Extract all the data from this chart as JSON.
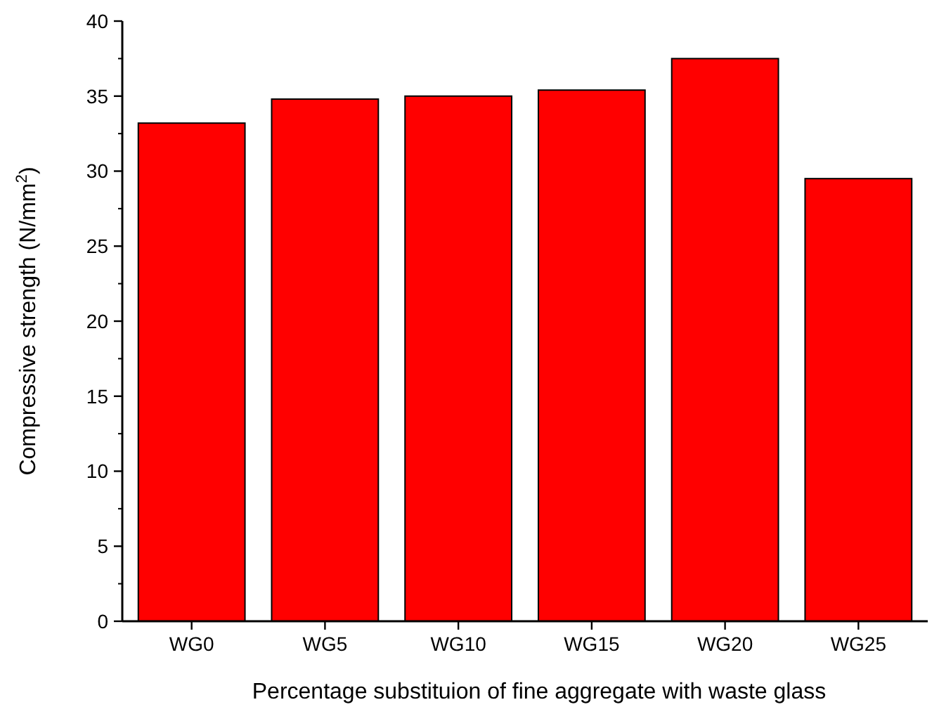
{
  "chart_data": {
    "type": "bar",
    "xlabel": "Percentage substituion of fine aggregate with waste glass",
    "ylabel": "Compressive strength (N/mm$^{2}$)",
    "categories": [
      "WG0",
      "WG5",
      "WG10",
      "WG15",
      "WG20",
      "WG25"
    ],
    "values": [
      33.2,
      34.8,
      35.0,
      35.4,
      37.5,
      29.5
    ],
    "color": "#ff0000",
    "ylim": [
      0,
      40
    ],
    "yticks": [
      0,
      5,
      10,
      15,
      20,
      25,
      30,
      35,
      40
    ],
    "grid": false
  }
}
